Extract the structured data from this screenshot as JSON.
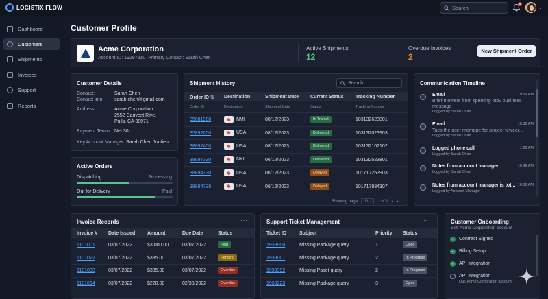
{
  "app": {
    "name": "LOGISTIX FLOW"
  },
  "search": {
    "placeholder": "Search"
  },
  "notifications": {
    "count": "8"
  },
  "sidebar": {
    "items": [
      {
        "label": "Dashboard",
        "icon": "grid-icon"
      },
      {
        "label": "Customers",
        "icon": "users-icon",
        "active": true
      },
      {
        "label": "Shipments",
        "icon": "box-icon"
      },
      {
        "label": "Invoices",
        "icon": "invoice-icon"
      },
      {
        "label": "Support",
        "icon": "headset-icon"
      },
      {
        "label": "Reports",
        "icon": "chart-icon"
      }
    ]
  },
  "page": {
    "title": "Customer Profile"
  },
  "profile": {
    "company": "Acme Corporation",
    "account_id_label": "Account ID:",
    "account_id": "19297810",
    "contact_label": "Primary Contact:",
    "contact": "Sarah Chen",
    "active_label": "Active Shipments",
    "active_value": "12",
    "overdue_label": "Overdue Invoices",
    "overdue_value": "2",
    "button": "New Shipment Order"
  },
  "details": {
    "title": "Customer Details",
    "rows": [
      {
        "label": "Contact:",
        "value": "Sarah Chen"
      },
      {
        "label": "Contact info:",
        "value": "sarah.chen@gmail.com"
      },
      {
        "label": "Address:",
        "value": "Acme Corporation"
      },
      {
        "label": "",
        "value": "2552 Canvest Rive,"
      },
      {
        "label": "",
        "value": "Puils, CA 38071"
      },
      {
        "label": "Payment Terms:",
        "value": "Net 30"
      },
      {
        "label": "Key Account Manager:",
        "value": "Sarah Chen Juntien"
      }
    ]
  },
  "orders": {
    "title": "Active Orders",
    "items": [
      {
        "label": "Dispatching",
        "status": "Processing",
        "progress": 0.55
      },
      {
        "label": "Out for Delivery",
        "status": "Paid",
        "progress": 0.82
      }
    ]
  },
  "shipments": {
    "title": "Shipment History",
    "search_placeholder": "Search...",
    "headers": [
      "Order ID",
      "Destination",
      "Shipment Date",
      "Current Status",
      "Tracking Number"
    ],
    "subheaders": [
      "Order ID",
      "Destination",
      "Shipment Date",
      "Status",
      "Tracking Number"
    ],
    "sort_glyph": "⇅",
    "rows": [
      {
        "id": "35681900",
        "dest": "NMI",
        "date": "08/12/2023",
        "status": "In Transit",
        "color": "green",
        "tracking": "103132623801"
      },
      {
        "id": "35892600",
        "dest": "USA",
        "date": "08/12/2023",
        "status": "Delivered",
        "color": "green",
        "tracking": "103132023903"
      },
      {
        "id": "38892400",
        "dest": "USA",
        "date": "08/12/2023",
        "status": "Delivered",
        "color": "green",
        "tracking": "103132102102"
      },
      {
        "id": "38897330",
        "dest": "NKII",
        "date": "06/12/2023",
        "status": "Delivered",
        "color": "green",
        "tracking": "103132523801"
      },
      {
        "id": "38894330",
        "dest": "USA",
        "date": "06/12/2023",
        "status": "Delayed",
        "color": "orange",
        "tracking": "101717253903"
      },
      {
        "id": "38894738",
        "dest": "USA",
        "date": "06/12/2023",
        "status": "Delayed",
        "color": "orange",
        "tracking": "101717984307"
      }
    ],
    "footer": {
      "showing": "Showing page",
      "page_size": "10",
      "page": "1 of 1",
      "prev": "‹",
      "next": "›"
    }
  },
  "timeline": {
    "title": "Communication Timeline",
    "items": [
      {
        "title": "Email",
        "time": "9:29 AM",
        "desc": "Brief-mowers from spenting otbv business",
        "desc2": "message",
        "by": "Logged by Sarah Chan",
        "icon": "mail-icon"
      },
      {
        "title": "Email",
        "time": "10:38 AM",
        "desc": "Taes the user memage for project feweer...",
        "desc2": "",
        "by": "Logged by Sarah Chan",
        "icon": "mail-icon"
      },
      {
        "title": "Logged phone call",
        "time": "1:29 AM",
        "desc": "",
        "desc2": "",
        "by": "Logged by Sarah Chan",
        "icon": "phone-icon"
      },
      {
        "title": "Notes from account manager",
        "time": "10:49 AM",
        "desc": "",
        "desc2": "",
        "by": "Logged by Sarah Chan",
        "icon": "note-icon"
      },
      {
        "title": "Notes from account manager is tot...",
        "time": "10:59 AM",
        "desc": "",
        "desc2": "",
        "by": "Logged by Account Manager",
        "icon": "note-icon"
      }
    ]
  },
  "invoices": {
    "title": "Invoice Records",
    "more": "···",
    "headers": [
      "Invoice #",
      "Date Issued",
      "Amount",
      "Due Date",
      "Status"
    ],
    "rows": [
      {
        "id": "1101001",
        "issued": "03/07/2022",
        "amount": "$3,000.00",
        "due": "03/07/2022",
        "status": "Paid",
        "color": "green"
      },
      {
        "id": "1101022",
        "issued": "03/07/2022",
        "amount": "$385.00",
        "due": "03/07/2022",
        "status": "Pending",
        "color": "yellow"
      },
      {
        "id": "1101033",
        "issued": "03/07/2022",
        "amount": "$385.00",
        "due": "03/07/2022",
        "status": "Overdue",
        "color": "red"
      },
      {
        "id": "1101034",
        "issued": "03/07/2022",
        "amount": "$220.00",
        "due": "02/38/2022",
        "status": "Overdue",
        "color": "red"
      }
    ]
  },
  "tickets": {
    "title": "Support Ticket Management",
    "more": "···",
    "headers": [
      "Ticket ID",
      "Subject",
      "Priority",
      "Status"
    ],
    "rows": [
      {
        "id": "1939900",
        "subject": "Missing Package query",
        "priority": "1",
        "status": "Open",
        "color": "gray"
      },
      {
        "id": "1939001",
        "subject": "Missing Package query",
        "priority": "2",
        "status": "In Progress",
        "color": "gray"
      },
      {
        "id": "1939392",
        "subject": "Missing Paset query",
        "priority": "2",
        "status": "In Progress",
        "color": "gray"
      },
      {
        "id": "1939223",
        "subject": "Missing Package query",
        "priority": "3",
        "status": "Open",
        "color": "gray"
      }
    ]
  },
  "onboarding": {
    "title": "Customer Onboarding",
    "subtitle": "Sett Acme Corporation account",
    "items": [
      {
        "label": "Contract Signed",
        "done": true
      },
      {
        "label": "Billing Setup",
        "done": true
      },
      {
        "label": "API Integration",
        "done": true
      },
      {
        "label": "API Integration",
        "done": false,
        "note": "Our. Acme Corporation account"
      }
    ]
  }
}
